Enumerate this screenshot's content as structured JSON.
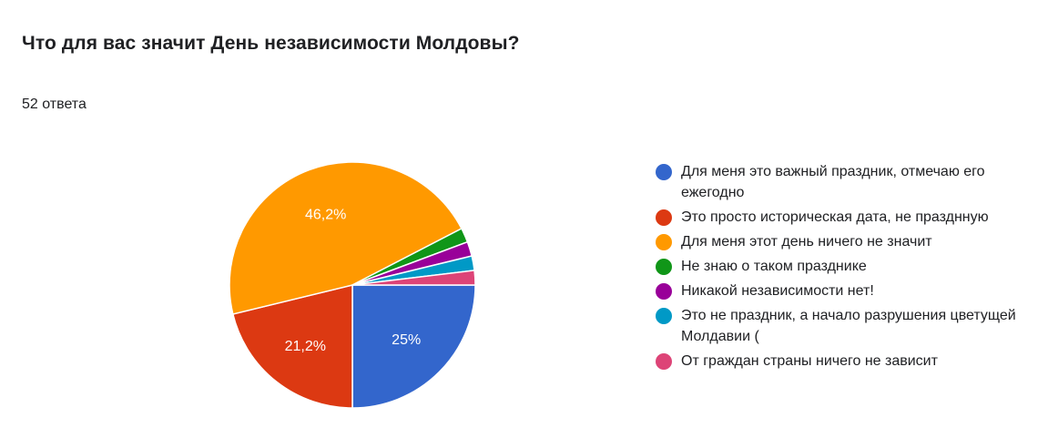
{
  "title": "Что для вас значит День независимости Молдовы?",
  "response_count": "52 ответа",
  "chart_data": {
    "type": "pie",
    "slices": [
      {
        "label": "Для меня это важный праздник, отмечаю его ежегодно",
        "value": 25,
        "display": "25%",
        "color": "#3366cc"
      },
      {
        "label": "Это просто историческая дата, не празднную",
        "value": 21.2,
        "display": "21,2%",
        "color": "#dc3912"
      },
      {
        "label": "Для меня этот день ничего не значит",
        "value": 46.2,
        "display": "46,2%",
        "color": "#ff9900"
      },
      {
        "label": "Не знаю о таком празднике",
        "value": 1.9,
        "display": "",
        "color": "#109618"
      },
      {
        "label": "Никакой независимости нет!",
        "value": 1.9,
        "display": "",
        "color": "#990099"
      },
      {
        "label": "Это не праздник, а начало разрушения цветущей Молдавии (",
        "value": 1.9,
        "display": "",
        "color": "#0099c6"
      },
      {
        "label": "От граждан страны ничего не зависит",
        "value": 1.9,
        "display": "",
        "color": "#dd4477"
      }
    ],
    "start": "3 o'clock",
    "direction": "clockwise",
    "legend_position": "right"
  }
}
